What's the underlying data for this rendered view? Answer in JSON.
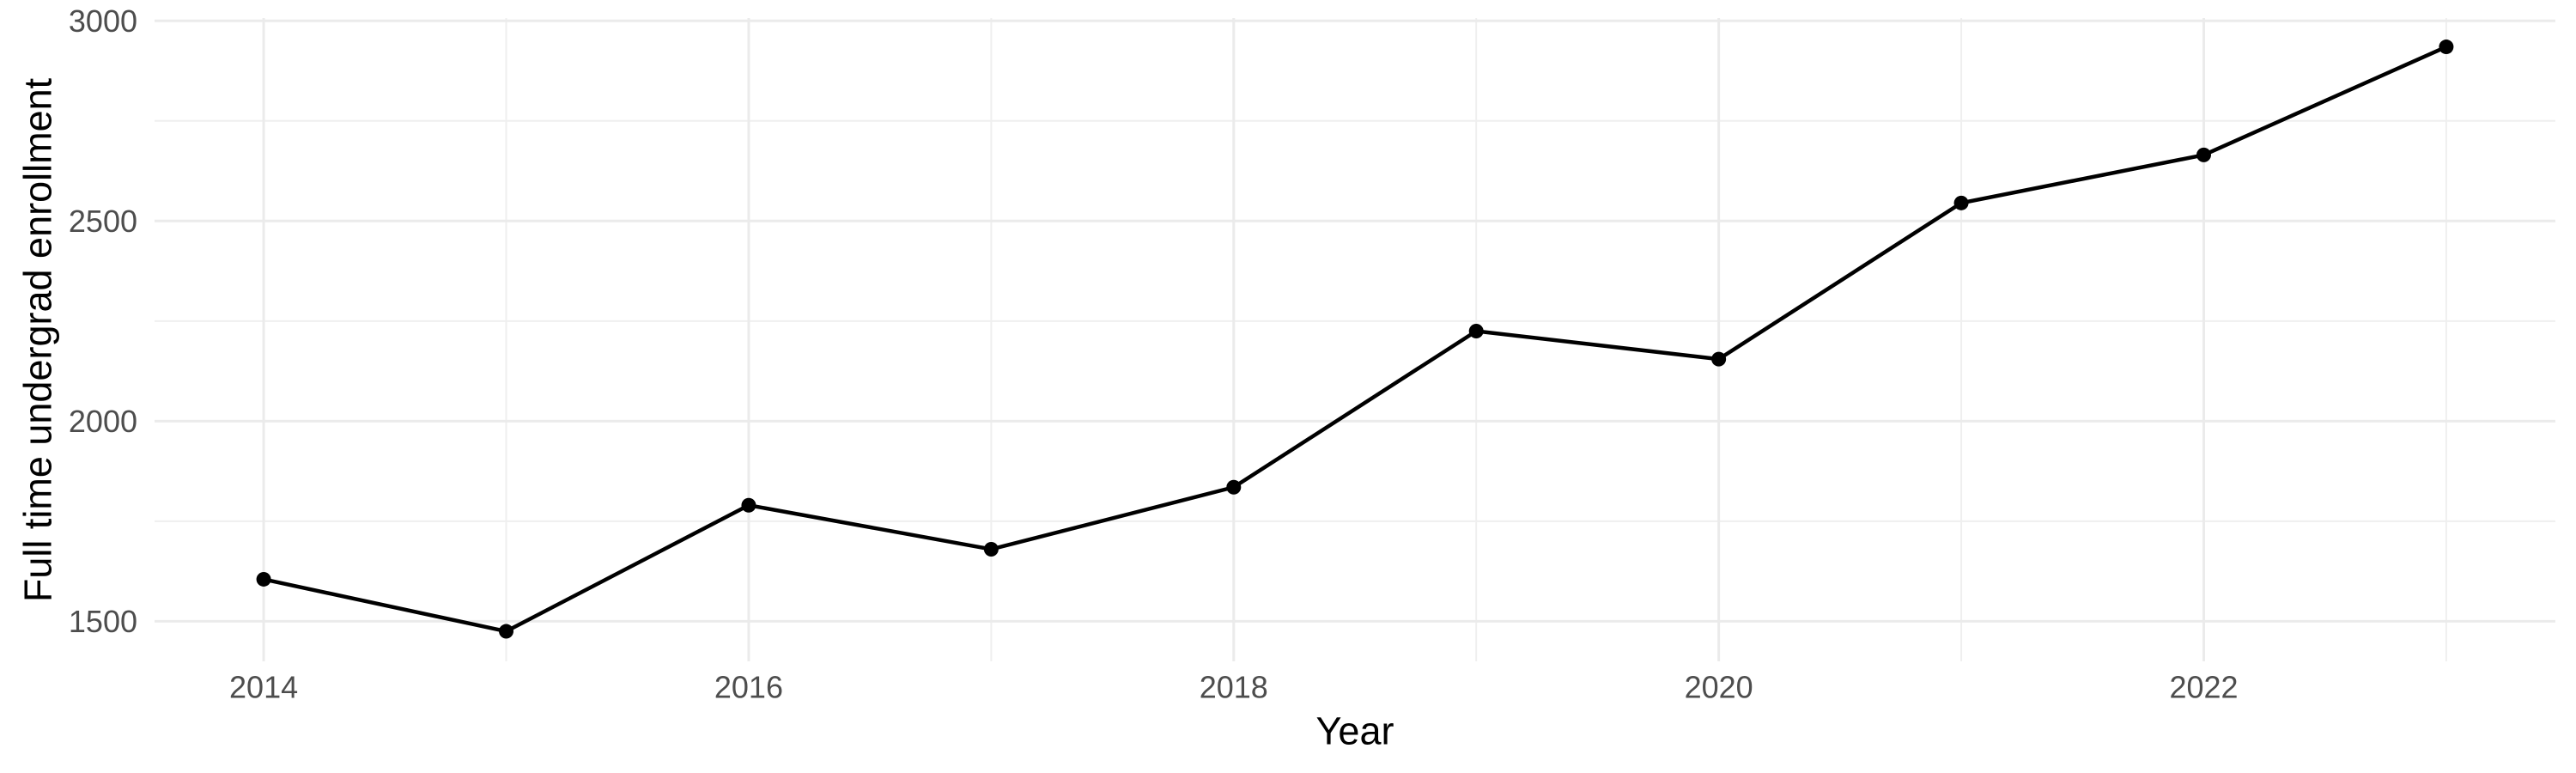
{
  "chart_data": {
    "type": "line",
    "title": "",
    "xlabel": "Year",
    "ylabel": "Full time undergrad enrollment",
    "x": [
      2014,
      2015,
      2016,
      2017,
      2018,
      2019,
      2020,
      2021,
      2022,
      2023
    ],
    "values": [
      1605,
      1475,
      1790,
      1680,
      1835,
      2225,
      2155,
      2545,
      2665,
      2935
    ],
    "series_name": "Full time undergrad enrollment",
    "x_ticks": [
      2014,
      2016,
      2018,
      2020,
      2022
    ],
    "x_minor_gridlines": [
      2015,
      2017,
      2019,
      2021,
      2023
    ],
    "y_ticks": [
      1500,
      2000,
      2500,
      3000
    ],
    "y_minor_gridlines": [
      1750,
      2250,
      2750
    ],
    "x_domain": [
      2013.55,
      2023.45
    ],
    "y_domain": [
      1400,
      3007
    ],
    "grid": true,
    "legend": false,
    "style": {
      "line_color": "#000000",
      "point_color": "#000000",
      "grid_major_color": "#EBEBEB",
      "grid_minor_color": "#EFEFEF",
      "tick_label_color": "#4D4D4D",
      "axis_title_color": "#000000",
      "background_color": "#FFFFFF"
    }
  }
}
